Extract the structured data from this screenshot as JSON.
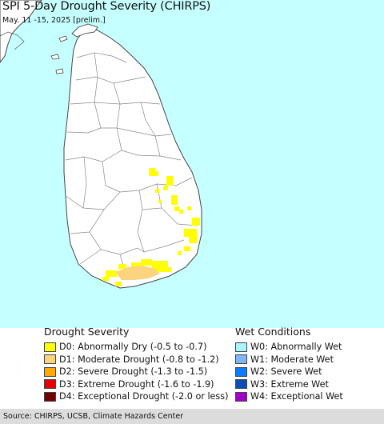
{
  "header": {
    "title": "SPI 5-Day Drought Severity (CHIRPS)",
    "subtitle": "May. 11 -15, 2025 [prelim.]"
  },
  "map": {
    "ocean_color": "#c6ffff",
    "land_color": "#ffffff",
    "boundary_color": "#555555"
  },
  "legend_drought": {
    "heading": "Drought Severity",
    "items": [
      {
        "code": "D0:",
        "label": "Abnormally Dry (-0.5 to -0.7)",
        "color": "#ffff00"
      },
      {
        "code": "D1:",
        "label": "Moderate Drought (-0.8 to -1.2)",
        "color": "#fcd37f"
      },
      {
        "code": "D2:",
        "label": "Severe Drought (-1.3 to -1.5)",
        "color": "#ffaa00"
      },
      {
        "code": "D3:",
        "label": "Extreme Drought (-1.6 to -1.9)",
        "color": "#e60000"
      },
      {
        "code": "D4:",
        "label": "Exceptional Drought (-2.0 or less)",
        "color": "#730000"
      }
    ]
  },
  "legend_wet": {
    "heading": "Wet Conditions",
    "items": [
      {
        "code": "W0:",
        "label": "Abnormally Wet",
        "color": "#aaf5ff"
      },
      {
        "code": "W1:",
        "label": "Moderate Wet",
        "color": "#7fb6f5"
      },
      {
        "code": "W2:",
        "label": "Severe Wet",
        "color": "#0a7cff"
      },
      {
        "code": "W3:",
        "label": "Extreme Wet",
        "color": "#0c4fb4"
      },
      {
        "code": "W4:",
        "label": "Exceptional Wet",
        "color": "#a000c8"
      }
    ]
  },
  "footer": {
    "source": "Source: CHIRPS, UCSB, Climate Hazards Center"
  }
}
